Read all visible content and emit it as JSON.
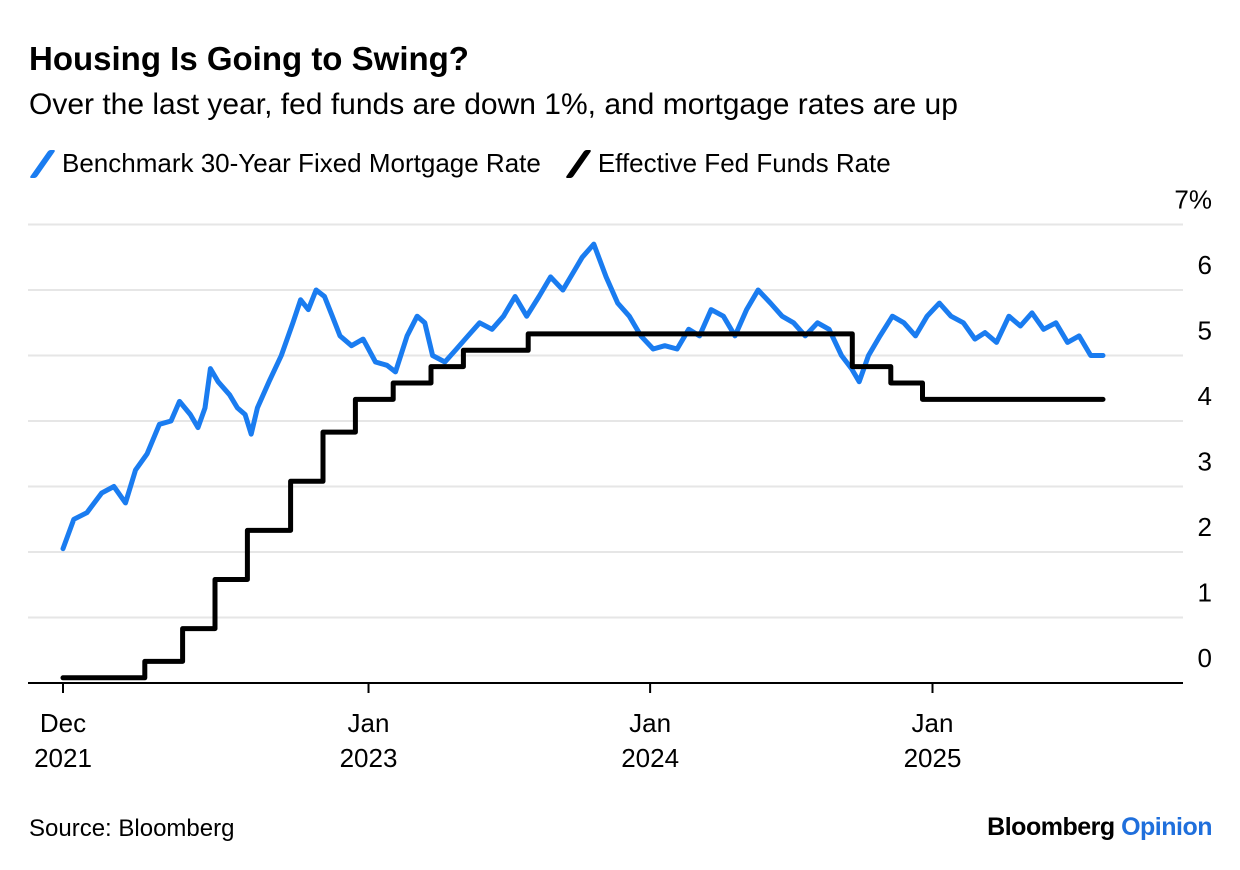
{
  "title": "Housing Is Going to Swing?",
  "subtitle": "Over the last year, fed funds are down 1%, and mortgage rates are up",
  "source": "Source: Bloomberg",
  "brand": {
    "name": "Bloomberg",
    "suffix": "Opinion"
  },
  "colors": {
    "mortgage": "#1a7cf0",
    "fedfunds": "#000000",
    "grid": "#e6e6e6",
    "brand_accent": "#1f6fdc"
  },
  "chart_data": {
    "type": "line",
    "title": "Housing Is Going to Swing?",
    "xlabel": "",
    "ylabel": "",
    "ylim": [
      0,
      7
    ],
    "y_ticks": [
      "0",
      "1",
      "2",
      "3",
      "4",
      "5",
      "6",
      "7%"
    ],
    "x_ticks": [
      {
        "date": "2021-12-01",
        "line1": "Dec",
        "line2": "2021"
      },
      {
        "date": "2023-01-01",
        "line1": "Jan",
        "line2": "2023"
      },
      {
        "date": "2024-01-01",
        "line1": "Jan",
        "line2": "2024"
      },
      {
        "date": "2025-01-01",
        "line1": "Jan",
        "line2": "2025"
      }
    ],
    "grid": true,
    "legend_position": "top-left",
    "series": [
      {
        "name": "Benchmark 30-Year Fixed Mortgage Rate",
        "color": "#1a7cf0",
        "step": false,
        "points": [
          [
            "2021-12-01",
            2.05
          ],
          [
            "2021-12-15",
            2.5
          ],
          [
            "2022-01-01",
            2.6
          ],
          [
            "2022-01-20",
            2.9
          ],
          [
            "2022-02-05",
            3.0
          ],
          [
            "2022-02-20",
            2.75
          ],
          [
            "2022-03-05",
            3.25
          ],
          [
            "2022-03-20",
            3.5
          ],
          [
            "2022-04-05",
            3.95
          ],
          [
            "2022-04-20",
            4.0
          ],
          [
            "2022-05-01",
            4.3
          ],
          [
            "2022-05-15",
            4.1
          ],
          [
            "2022-05-25",
            3.9
          ],
          [
            "2022-06-03",
            4.2
          ],
          [
            "2022-06-10",
            4.8
          ],
          [
            "2022-06-20",
            4.6
          ],
          [
            "2022-07-05",
            4.4
          ],
          [
            "2022-07-15",
            4.2
          ],
          [
            "2022-07-25",
            4.1
          ],
          [
            "2022-08-02",
            3.8
          ],
          [
            "2022-08-10",
            4.2
          ],
          [
            "2022-08-25",
            4.6
          ],
          [
            "2022-09-10",
            5.0
          ],
          [
            "2022-09-25",
            5.5
          ],
          [
            "2022-10-05",
            5.85
          ],
          [
            "2022-10-15",
            5.7
          ],
          [
            "2022-10-25",
            6.0
          ],
          [
            "2022-11-05",
            5.9
          ],
          [
            "2022-11-15",
            5.6
          ],
          [
            "2022-11-25",
            5.3
          ],
          [
            "2022-12-10",
            5.15
          ],
          [
            "2022-12-25",
            5.25
          ],
          [
            "2023-01-10",
            4.9
          ],
          [
            "2023-01-25",
            4.85
          ],
          [
            "2023-02-05",
            4.75
          ],
          [
            "2023-02-20",
            5.3
          ],
          [
            "2023-03-05",
            5.6
          ],
          [
            "2023-03-15",
            5.5
          ],
          [
            "2023-03-25",
            5.0
          ],
          [
            "2023-04-10",
            4.9
          ],
          [
            "2023-04-25",
            5.1
          ],
          [
            "2023-05-10",
            5.3
          ],
          [
            "2023-05-25",
            5.5
          ],
          [
            "2023-06-10",
            5.4
          ],
          [
            "2023-06-25",
            5.6
          ],
          [
            "2023-07-10",
            5.9
          ],
          [
            "2023-07-25",
            5.6
          ],
          [
            "2023-08-10",
            5.9
          ],
          [
            "2023-08-25",
            6.2
          ],
          [
            "2023-09-10",
            6.0
          ],
          [
            "2023-09-25",
            6.3
          ],
          [
            "2023-10-05",
            6.5
          ],
          [
            "2023-10-20",
            6.7
          ],
          [
            "2023-11-05",
            6.2
          ],
          [
            "2023-11-20",
            5.8
          ],
          [
            "2023-12-05",
            5.6
          ],
          [
            "2023-12-20",
            5.3
          ],
          [
            "2024-01-05",
            5.1
          ],
          [
            "2024-01-20",
            5.15
          ],
          [
            "2024-02-05",
            5.1
          ],
          [
            "2024-02-20",
            5.4
          ],
          [
            "2024-03-05",
            5.3
          ],
          [
            "2024-03-20",
            5.7
          ],
          [
            "2024-04-05",
            5.6
          ],
          [
            "2024-04-20",
            5.3
          ],
          [
            "2024-05-05",
            5.7
          ],
          [
            "2024-05-20",
            6.0
          ],
          [
            "2024-06-05",
            5.8
          ],
          [
            "2024-06-20",
            5.6
          ],
          [
            "2024-07-05",
            5.5
          ],
          [
            "2024-07-20",
            5.3
          ],
          [
            "2024-08-05",
            5.5
          ],
          [
            "2024-08-20",
            5.4
          ],
          [
            "2024-09-05",
            5.0
          ],
          [
            "2024-09-18",
            4.8
          ],
          [
            "2024-09-28",
            4.6
          ],
          [
            "2024-10-10",
            5.0
          ],
          [
            "2024-10-25",
            5.3
          ],
          [
            "2024-11-10",
            5.6
          ],
          [
            "2024-11-25",
            5.5
          ],
          [
            "2024-12-10",
            5.3
          ],
          [
            "2024-12-25",
            5.6
          ],
          [
            "2025-01-10",
            5.8
          ],
          [
            "2025-01-25",
            5.6
          ],
          [
            "2025-02-10",
            5.5
          ],
          [
            "2025-02-25",
            5.25
          ],
          [
            "2025-03-10",
            5.35
          ],
          [
            "2025-03-25",
            5.2
          ],
          [
            "2025-04-10",
            5.6
          ],
          [
            "2025-04-25",
            5.45
          ],
          [
            "2025-05-10",
            5.65
          ],
          [
            "2025-05-25",
            5.4
          ],
          [
            "2025-06-10",
            5.5
          ],
          [
            "2025-06-25",
            5.2
          ],
          [
            "2025-07-10",
            5.3
          ],
          [
            "2025-07-25",
            5.0
          ],
          [
            "2025-08-10",
            5.0
          ]
        ]
      },
      {
        "name": "Effective Fed Funds Rate",
        "color": "#000000",
        "step": true,
        "points": [
          [
            "2021-12-01",
            0.08
          ],
          [
            "2022-03-17",
            0.33
          ],
          [
            "2022-05-05",
            0.83
          ],
          [
            "2022-06-16",
            1.58
          ],
          [
            "2022-07-28",
            2.33
          ],
          [
            "2022-09-22",
            3.08
          ],
          [
            "2022-11-03",
            3.83
          ],
          [
            "2022-12-15",
            4.33
          ],
          [
            "2023-02-02",
            4.58
          ],
          [
            "2023-03-23",
            4.83
          ],
          [
            "2023-05-04",
            5.08
          ],
          [
            "2023-07-27",
            5.33
          ],
          [
            "2024-09-19",
            4.83
          ],
          [
            "2024-11-08",
            4.58
          ],
          [
            "2024-12-19",
            4.33
          ],
          [
            "2025-08-10",
            4.33
          ]
        ]
      }
    ]
  }
}
